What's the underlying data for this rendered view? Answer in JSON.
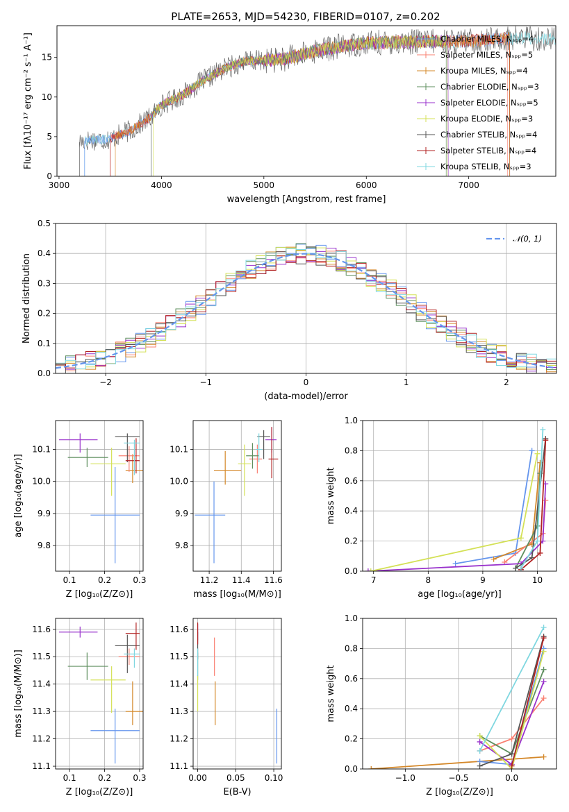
{
  "figure": {
    "title": "PLATE=2653, MJD=54230, FIBERID=0107, z=0.202"
  },
  "chart_data": [
    {
      "id": "spectrum",
      "type": "line",
      "xlabel": "wavelength [Angstrom, rest frame]",
      "ylabel": "Flux [fλ10⁻¹⁷ erg cm⁻² s⁻¹ A⁻¹]",
      "xlim": [
        2980,
        7850
      ],
      "ylim": [
        0,
        19
      ],
      "xticks": [
        3000,
        4000,
        5000,
        6000,
        7000
      ],
      "yticks": [
        0,
        5,
        10,
        15
      ],
      "grid": false,
      "legend_position": "right",
      "legend": [
        {
          "label": "Chabrier MILES, Nₛₚₚ=4",
          "color": "#6495ED"
        },
        {
          "label": "Salpeter MILES, Nₛₚₚ=5",
          "color": "#FA8072"
        },
        {
          "label": "Kroupa MILES, Nₛₚₚ=4",
          "color": "#D4882A"
        },
        {
          "label": "Chabrier ELODIE, Nₛₚₚ=3",
          "color": "#5F8F5F"
        },
        {
          "label": "Salpeter ELODIE, Nₛₚₚ=5",
          "color": "#9932CC"
        },
        {
          "label": "Kroupa ELODIE, Nₛₚₚ=3",
          "color": "#D4E157"
        },
        {
          "label": "Chabrier STELIB, Nₛₚₚ=4",
          "color": "#555555"
        },
        {
          "label": "Salpeter STELIB, Nₛₚₚ=4",
          "color": "#B22222"
        },
        {
          "label": "Kroupa STELIB, Nₛₚₚ=3",
          "color": "#7FD7E0"
        }
      ],
      "continuum": {
        "x": [
          3200,
          3300,
          3500,
          3700,
          3900,
          4000,
          4200,
          4400,
          4600,
          4800,
          5000,
          5200,
          5500,
          5800,
          6000,
          6300,
          6600,
          6900,
          7200,
          7500,
          7800
        ],
        "y": [
          4.3,
          4.6,
          4.7,
          5.8,
          7.5,
          9.0,
          10.2,
          12.0,
          13.5,
          14.5,
          14.6,
          14.8,
          15.8,
          16.5,
          16.8,
          16.9,
          17.0,
          17.0,
          17.2,
          17.5,
          17.3
        ]
      },
      "segments": [
        {
          "start": 3200,
          "end": 7850,
          "color": "#555555"
        },
        {
          "start": 3250,
          "end": 7850,
          "color": "#7FD7E0"
        },
        {
          "start": 3250,
          "end": 7400,
          "color": "#6495ED"
        },
        {
          "start": 3500,
          "end": 7380,
          "color": "#FA8072"
        },
        {
          "start": 3500,
          "end": 7400,
          "color": "#B22222"
        },
        {
          "start": 3550,
          "end": 7400,
          "color": "#D4882A"
        },
        {
          "start": 3900,
          "end": 6800,
          "color": "#9932CC"
        },
        {
          "start": 3900,
          "end": 6780,
          "color": "#5F8F5F"
        },
        {
          "start": 3920,
          "end": 6790,
          "color": "#D4E157"
        }
      ]
    },
    {
      "id": "residuals",
      "type": "line",
      "xlabel": "(data-model)/error",
      "ylabel": "Normed distribution",
      "xlim": [
        -2.5,
        2.5
      ],
      "ylim": [
        0,
        0.5
      ],
      "xticks": [
        -2,
        -1,
        0,
        1,
        2
      ],
      "xtick_labels": [
        "−2",
        "−1",
        "0",
        "1",
        "2"
      ],
      "yticks": [
        0.0,
        0.1,
        0.2,
        0.3,
        0.4,
        0.5
      ],
      "ytick_labels": [
        "0.0",
        "0.1",
        "0.2",
        "0.3",
        "0.4",
        "0.5"
      ],
      "grid": true,
      "legend_position": "top-right",
      "reference": {
        "label": "𝒩(0, 1)",
        "color": "#6495ED",
        "style": "dashed"
      },
      "bin_width": 0.1,
      "series_colors": [
        "#6495ED",
        "#FA8072",
        "#D4882A",
        "#5F8F5F",
        "#9932CC",
        "#D4E157",
        "#555555",
        "#B22222",
        "#7FD7E0"
      ]
    },
    {
      "id": "age-vs-z",
      "type": "scatter",
      "xlabel": "Z [log₁₀(Z/Z⊙)]",
      "ylabel": "age  [log₁₀(age/yr)]",
      "xlim": [
        0.06,
        0.31
      ],
      "ylim": [
        9.72,
        10.19
      ],
      "xticks": [
        0.1,
        0.2,
        0.3
      ],
      "xtick_labels": [
        "0.1",
        "0.2",
        "0.3"
      ],
      "yticks": [
        9.8,
        9.9,
        10.0,
        10.1
      ],
      "ytick_labels": [
        "9.8",
        "9.9",
        "10.0",
        "10.1"
      ],
      "grid": true,
      "points": [
        {
          "x": 0.23,
          "y": 9.895,
          "xerr": [
            0.07,
            0.07
          ],
          "yerr": [
            0.15,
            0.15
          ],
          "color": "#6495ED"
        },
        {
          "x": 0.28,
          "y": 10.035,
          "xerr": [
            0.02,
            0.03
          ],
          "yerr": [
            0.04,
            0.05
          ],
          "color": "#D4882A"
        },
        {
          "x": 0.27,
          "y": 10.08,
          "xerr": [
            0.03,
            0.03
          ],
          "yerr": [
            0.05,
            0.03
          ],
          "color": "#FA8072"
        },
        {
          "x": 0.15,
          "y": 10.075,
          "xerr": [
            0.055,
            0.06
          ],
          "yerr": [
            0.03,
            0.03
          ],
          "color": "#5F8F5F"
        },
        {
          "x": 0.13,
          "y": 10.13,
          "xerr": [
            0.06,
            0.05
          ],
          "yerr": [
            0.04,
            0.02
          ],
          "color": "#9932CC"
        },
        {
          "x": 0.22,
          "y": 10.055,
          "xerr": [
            0.06,
            0.04
          ],
          "yerr": [
            0.1,
            0.05
          ],
          "color": "#D4E157"
        },
        {
          "x": 0.265,
          "y": 10.14,
          "xerr": [
            0.035,
            0.035
          ],
          "yerr": [
            0.08,
            0.01
          ],
          "color": "#555555"
        },
        {
          "x": 0.29,
          "y": 10.065,
          "xerr": [
            0.03,
            0.01
          ],
          "yerr": [
            0.04,
            0.07
          ],
          "color": "#B22222"
        },
        {
          "x": 0.285,
          "y": 10.12,
          "xerr": [
            0.03,
            0.015
          ],
          "yerr": [
            0.1,
            0.01
          ],
          "color": "#7FD7E0"
        }
      ]
    },
    {
      "id": "age-vs-mass",
      "type": "scatter",
      "xlabel": "mass [log₁₀(M/M⊙)]",
      "ylabel": "",
      "xlim": [
        11.1,
        11.65
      ],
      "ylim": [
        9.72,
        10.19
      ],
      "xticks": [
        11.2,
        11.4,
        11.6
      ],
      "xtick_labels": [
        "11.2",
        "11.4",
        "11.6"
      ],
      "yticks": [
        9.8,
        9.9,
        10.0,
        10.1
      ],
      "ytick_labels": [
        "9.8",
        "9.9",
        "10.0",
        "10.1"
      ],
      "grid": true,
      "points": [
        {
          "x": 11.23,
          "y": 9.895,
          "xerr": [
            0.12,
            0.07
          ],
          "yerr": [
            0.15,
            0.105
          ],
          "color": "#6495ED"
        },
        {
          "x": 11.3,
          "y": 10.035,
          "xerr": [
            0.07,
            0.1
          ],
          "yerr": [
            0.045,
            0.06
          ],
          "color": "#D4882A"
        },
        {
          "x": 11.5,
          "y": 10.07,
          "xerr": [
            0.05,
            0.03
          ],
          "yerr": [
            0.045,
            0.045
          ],
          "color": "#FA8072"
        },
        {
          "x": 11.47,
          "y": 10.08,
          "xerr": [
            0.04,
            0.04
          ],
          "yerr": [
            0.04,
            0.04
          ],
          "color": "#5F8F5F"
        },
        {
          "x": 11.59,
          "y": 10.13,
          "xerr": [
            0.04,
            0.03
          ],
          "yerr": [
            0.04,
            0.04
          ],
          "color": "#9932CC"
        },
        {
          "x": 11.42,
          "y": 10.055,
          "xerr": [
            0.04,
            0.04
          ],
          "yerr": [
            0.1,
            0.06
          ],
          "color": "#D4E157"
        },
        {
          "x": 11.54,
          "y": 10.14,
          "xerr": [
            0.04,
            0.04
          ],
          "yerr": [
            0.07,
            0.02
          ],
          "color": "#555555"
        },
        {
          "x": 11.59,
          "y": 10.07,
          "xerr": [
            0.02,
            0.04
          ],
          "yerr": [
            0.06,
            0.1
          ],
          "color": "#B22222"
        },
        {
          "x": 11.51,
          "y": 10.1,
          "xerr": [
            0.02,
            0.02
          ],
          "yerr": [
            0.04,
            0.05
          ],
          "color": "#7FD7E0"
        }
      ]
    },
    {
      "id": "weight-vs-age",
      "type": "line",
      "xlabel": "age  [log₁₀(age/yr)]",
      "ylabel": "mass weight",
      "xlim": [
        6.8,
        10.35
      ],
      "ylim": [
        0,
        1
      ],
      "xticks": [
        7,
        8,
        9,
        10
      ],
      "xtick_labels": [
        "7",
        "8",
        "9",
        "10"
      ],
      "yticks": [
        0,
        0.2,
        0.4,
        0.6,
        0.8,
        1.0
      ],
      "ytick_labels": [
        "0.0",
        "0.2",
        "0.4",
        "0.6",
        "0.8",
        "1.0"
      ],
      "grid": true,
      "series": [
        {
          "color": "#6495ED",
          "x": [
            8.5,
            9.6,
            9.9
          ],
          "y": [
            0.05,
            0.12,
            0.8
          ]
        },
        {
          "color": "#D4882A",
          "x": [
            9.2,
            9.9,
            10.05
          ],
          "y": [
            0.08,
            0.18,
            0.72
          ]
        },
        {
          "color": "#FA8072",
          "x": [
            9.4,
            10.1,
            10.15
          ],
          "y": [
            0.06,
            0.25,
            0.47
          ]
        },
        {
          "color": "#5F8F5F",
          "x": [
            9.6,
            10.0,
            10.05
          ],
          "y": [
            0.02,
            0.3,
            0.65
          ]
        },
        {
          "color": "#9932CC",
          "x": [
            6.9,
            9.7,
            10.1,
            10.15
          ],
          "y": [
            0.0,
            0.05,
            0.2,
            0.58
          ]
        },
        {
          "color": "#D4E157",
          "x": [
            6.95,
            9.7,
            10.0
          ],
          "y": [
            0.0,
            0.22,
            0.78
          ]
        },
        {
          "color": "#555555",
          "x": [
            9.6,
            9.9,
            10.15
          ],
          "y": [
            0.02,
            0.09,
            0.88
          ]
        },
        {
          "color": "#B22222",
          "x": [
            9.7,
            10.05,
            10.15
          ],
          "y": [
            0.01,
            0.12,
            0.87
          ]
        },
        {
          "color": "#7FD7E0",
          "x": [
            9.7,
            10.0,
            10.1
          ],
          "y": [
            0.02,
            0.2,
            0.94
          ]
        }
      ]
    },
    {
      "id": "mass-vs-z",
      "type": "scatter",
      "xlabel": "Z [log₁₀(Z/Z⊙)]",
      "ylabel": "mass [log₁₀(M/M⊙)]",
      "xlim": [
        0.06,
        0.31
      ],
      "ylim": [
        11.09,
        11.64
      ],
      "xticks": [
        0.1,
        0.2,
        0.3
      ],
      "xtick_labels": [
        "0.1",
        "0.2",
        "0.3"
      ],
      "yticks": [
        11.1,
        11.2,
        11.3,
        11.4,
        11.5,
        11.6
      ],
      "ytick_labels": [
        "11.1",
        "11.2",
        "11.3",
        "11.4",
        "11.5",
        "11.6"
      ],
      "grid": true,
      "points": [
        {
          "x": 0.23,
          "y": 11.23,
          "xerr": [
            0.07,
            0.07
          ],
          "yerr": [
            0.12,
            0.08
          ],
          "color": "#6495ED"
        },
        {
          "x": 0.28,
          "y": 11.3,
          "xerr": [
            0.02,
            0.03
          ],
          "yerr": [
            0.05,
            0.11
          ],
          "color": "#D4882A"
        },
        {
          "x": 0.27,
          "y": 11.5,
          "xerr": [
            0.03,
            0.03
          ],
          "yerr": [
            0.03,
            0.03
          ],
          "color": "#FA8072"
        },
        {
          "x": 0.15,
          "y": 11.465,
          "xerr": [
            0.055,
            0.06
          ],
          "yerr": [
            0.05,
            0.05
          ],
          "color": "#5F8F5F"
        },
        {
          "x": 0.13,
          "y": 11.59,
          "xerr": [
            0.06,
            0.05
          ],
          "yerr": [
            0.02,
            0.02
          ],
          "color": "#9932CC"
        },
        {
          "x": 0.22,
          "y": 11.415,
          "xerr": [
            0.06,
            0.04
          ],
          "yerr": [
            0.12,
            0.05
          ],
          "color": "#D4E157"
        },
        {
          "x": 0.265,
          "y": 11.54,
          "xerr": [
            0.035,
            0.035
          ],
          "yerr": [
            0.1,
            0.04
          ],
          "color": "#555555"
        },
        {
          "x": 0.29,
          "y": 11.585,
          "xerr": [
            0.03,
            0.01
          ],
          "yerr": [
            0.06,
            0.04
          ],
          "color": "#B22222"
        },
        {
          "x": 0.285,
          "y": 11.51,
          "xerr": [
            0.03,
            0.015
          ],
          "yerr": [
            0.05,
            0.02
          ],
          "color": "#7FD7E0"
        }
      ]
    },
    {
      "id": "mass-vs-ebv",
      "type": "scatter",
      "xlabel": "E(B-V)",
      "ylabel": "",
      "xlim": [
        -0.006,
        0.11
      ],
      "ylim": [
        11.09,
        11.64
      ],
      "xticks": [
        0.0,
        0.05,
        0.1
      ],
      "xtick_labels": [
        "0.00",
        "0.05",
        "0.10"
      ],
      "yticks": [
        11.1,
        11.2,
        11.3,
        11.4,
        11.5,
        11.6
      ],
      "ytick_labels": [
        "11.1",
        "11.2",
        "11.3",
        "11.4",
        "11.5",
        "11.6"
      ],
      "grid": true,
      "points": [
        {
          "x": 0.104,
          "y": 11.23,
          "xerr": [
            0,
            0
          ],
          "yerr": [
            0.12,
            0.08
          ],
          "color": "#6495ED"
        },
        {
          "x": 0.023,
          "y": 11.3,
          "xerr": [
            0,
            0
          ],
          "yerr": [
            0.05,
            0.11
          ],
          "color": "#D4882A"
        },
        {
          "x": 0.022,
          "y": 11.49,
          "xerr": [
            0,
            0
          ],
          "yerr": [
            0.06,
            0.08
          ],
          "color": "#FA8072"
        },
        {
          "x": 0.0,
          "y": 11.465,
          "xerr": [
            0,
            0
          ],
          "yerr": [
            0.05,
            0.05
          ],
          "color": "#5F8F5F"
        },
        {
          "x": 0.0,
          "y": 11.59,
          "xerr": [
            0,
            0
          ],
          "yerr": [
            0.03,
            0.03
          ],
          "color": "#9932CC"
        },
        {
          "x": 0.0,
          "y": 11.38,
          "xerr": [
            0,
            0
          ],
          "yerr": [
            0.08,
            0.05
          ],
          "color": "#D4E157"
        },
        {
          "x": 0.0,
          "y": 11.54,
          "xerr": [
            0,
            0
          ],
          "yerr": [
            0.05,
            0.05
          ],
          "color": "#555555"
        },
        {
          "x": 0.0,
          "y": 11.585,
          "xerr": [
            0,
            0
          ],
          "yerr": [
            0.04,
            0.04
          ],
          "color": "#B22222"
        },
        {
          "x": 0.0,
          "y": 11.48,
          "xerr": [
            0,
            0
          ],
          "yerr": [
            0.05,
            0.05
          ],
          "color": "#7FD7E0"
        }
      ]
    },
    {
      "id": "weight-vs-z",
      "type": "line",
      "xlabel": "Z [log₁₀(Z/Z⊙)]",
      "ylabel": "mass weight",
      "xlim": [
        -1.4,
        0.42
      ],
      "ylim": [
        0,
        1
      ],
      "xticks": [
        -1.0,
        -0.5,
        0.0
      ],
      "xtick_labels": [
        "−1.0",
        "−0.5",
        "0.0"
      ],
      "yticks": [
        0,
        0.2,
        0.4,
        0.6,
        0.8,
        1.0
      ],
      "ytick_labels": [
        "0.0",
        "0.2",
        "0.4",
        "0.6",
        "0.8",
        "1.0"
      ],
      "grid": true,
      "series": [
        {
          "color": "#D4882A",
          "x": [
            -1.32,
            0.3
          ],
          "y": [
            0.0,
            0.08
          ]
        },
        {
          "color": "#6495ED",
          "x": [
            -0.3,
            0.0,
            0.3
          ],
          "y": [
            0.05,
            0.03,
            0.8
          ]
        },
        {
          "color": "#FA8072",
          "x": [
            -0.3,
            0.0,
            0.3
          ],
          "y": [
            0.12,
            0.2,
            0.47
          ]
        },
        {
          "color": "#5F8F5F",
          "x": [
            -0.3,
            0.0,
            0.3
          ],
          "y": [
            0.22,
            0.1,
            0.66
          ]
        },
        {
          "color": "#9932CC",
          "x": [
            -0.3,
            0.0,
            0.3
          ],
          "y": [
            0.18,
            0.03,
            0.58
          ]
        },
        {
          "color": "#D4E157",
          "x": [
            -0.3,
            0.0,
            0.3
          ],
          "y": [
            0.22,
            0.0,
            0.78
          ]
        },
        {
          "color": "#555555",
          "x": [
            -0.3,
            0.0,
            0.3
          ],
          "y": [
            0.02,
            0.1,
            0.88
          ]
        },
        {
          "color": "#B22222",
          "x": [
            0.0,
            0.3
          ],
          "y": [
            0.02,
            0.87
          ]
        },
        {
          "color": "#7FD7E0",
          "x": [
            -0.3,
            0.3
          ],
          "y": [
            0.12,
            0.94
          ]
        }
      ]
    }
  ]
}
